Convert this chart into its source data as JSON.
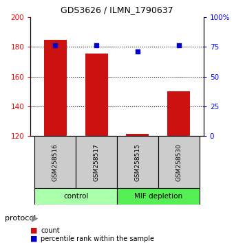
{
  "title": "GDS3626 / ILMN_1790637",
  "samples": [
    "GSM258516",
    "GSM258517",
    "GSM258515",
    "GSM258530"
  ],
  "counts": [
    184.5,
    175.5,
    121.5,
    150.0
  ],
  "percentile_ranks": [
    76.0,
    76.0,
    71.0,
    76.0
  ],
  "groups": [
    {
      "label": "control",
      "samples": [
        0,
        1
      ],
      "color": "#aaffaa"
    },
    {
      "label": "MIF depletion",
      "samples": [
        2,
        3
      ],
      "color": "#55ee55"
    }
  ],
  "bar_color": "#cc1111",
  "dot_color": "#0000cc",
  "left_ylim": [
    120,
    200
  ],
  "right_ylim": [
    0,
    100
  ],
  "left_yticks": [
    120,
    140,
    160,
    180,
    200
  ],
  "right_yticks": [
    0,
    25,
    50,
    75,
    100
  ],
  "right_yticklabels": [
    "0",
    "25",
    "50",
    "75",
    "100%"
  ],
  "grid_values": [
    140,
    160,
    180
  ],
  "bar_width": 0.55,
  "bar_bottom": 120,
  "sample_box_color": "#cccccc",
  "legend_bar_label": "count",
  "legend_dot_label": "percentile rank within the sample",
  "protocol_label": "protocol"
}
